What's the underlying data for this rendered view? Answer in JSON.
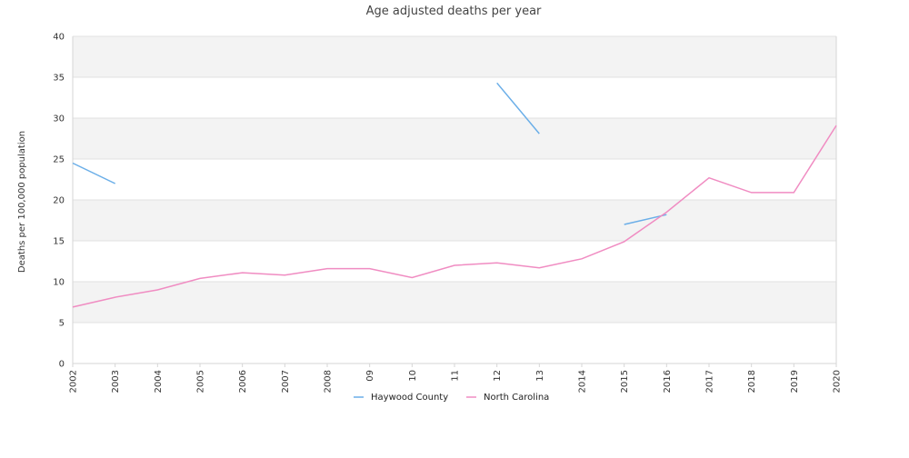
{
  "chart_data": {
    "type": "line",
    "title": "Age adjusted deaths per year",
    "xlabel": "",
    "ylabel": "Deaths per 100,000 population",
    "categories": [
      "2002",
      "2003",
      "2004",
      "2005",
      "2006",
      "2007",
      "2008",
      "09",
      "10",
      "11",
      "12",
      "13",
      "2014",
      "2015",
      "2016",
      "2017",
      "2018",
      "2019",
      "2020"
    ],
    "ylim": [
      0,
      40
    ],
    "yticks": [
      0,
      5,
      10,
      15,
      20,
      25,
      30,
      35,
      40
    ],
    "grid": "horizontal bands",
    "legend_position": "bottom",
    "series": [
      {
        "name": "Haywood County",
        "color": "#6aaee8",
        "values": [
          24.5,
          22.0,
          null,
          null,
          null,
          null,
          null,
          null,
          null,
          null,
          34.3,
          28.1,
          null,
          17.0,
          18.2,
          null,
          null,
          null,
          null
        ]
      },
      {
        "name": "North Carolina",
        "color": "#f08cc2",
        "values": [
          6.9,
          8.1,
          9.0,
          10.4,
          11.1,
          10.8,
          11.6,
          11.6,
          10.5,
          12.0,
          12.3,
          11.7,
          12.8,
          14.9,
          18.5,
          22.7,
          20.9,
          20.9,
          29.1
        ]
      }
    ]
  }
}
